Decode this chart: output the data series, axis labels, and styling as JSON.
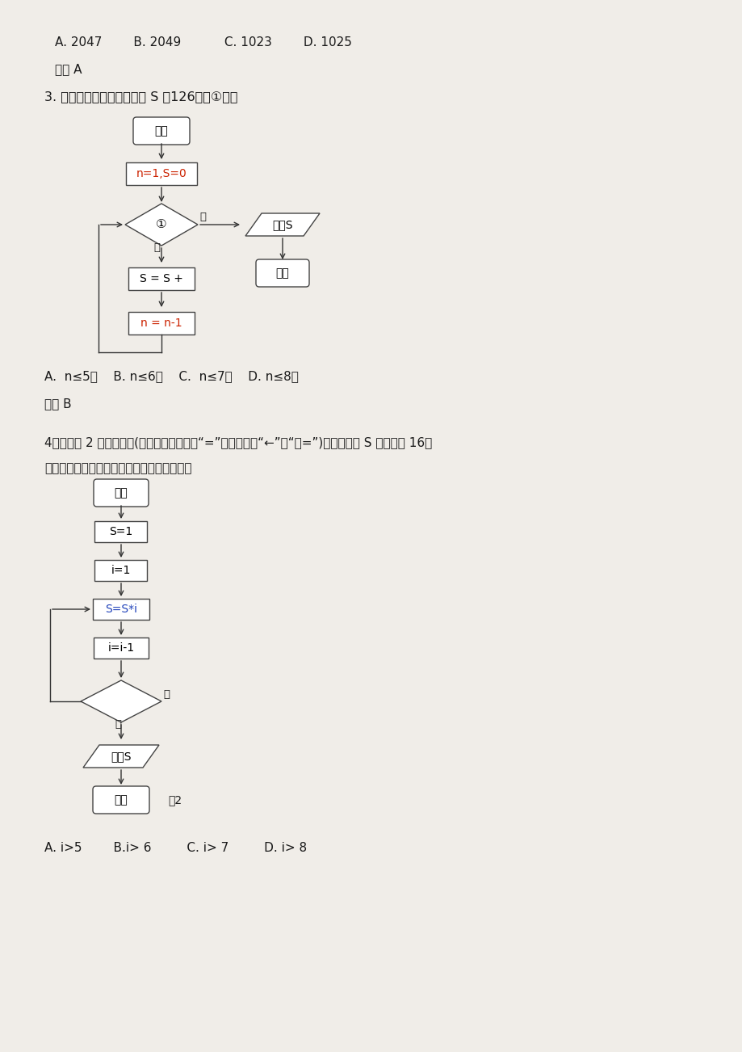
{
  "bg_color": "#f0ede8",
  "text_color": "#1a1a1a",
  "line1": "A. 2047        B. 2049           C. 1023        D. 1025",
  "line2": "答案 A",
  "q3_text": "3. 若右面的程序框图输出的 S 是126，则①应为",
  "q3_options": "A.  n≤5？    B. n≤6？    C.  n≤7？    D. n≤8？",
  "q3_answer": "答案 B",
  "q4_text1": "4、阅读图 2 的程序框图(框图中的赋値符号“=”也可以写成“←”或“：=”)，若输出的 S 的値等于 16，",
  "q4_text2": "那么在程序框图中的判断框内应填写的条件是",
  "q4_options": "A. i>5        B.i> 6         C. i> 7         D. i> 8",
  "box_color": "#ffffff",
  "box_border": "#555555",
  "arrow_color": "#333333",
  "red_text": "#cc2200",
  "blue_text": "#2244bb",
  "dark_text": "#1a1a1a",
  "fc1_kaishi": "开始",
  "fc1_init": "n=1,S=0",
  "fc1_cond": "①",
  "fc1_no": "否",
  "fc1_yes": "是",
  "fc1_sss": "S = S +",
  "fc1_nn": "n = n-1",
  "fc1_output": "输出S",
  "fc1_end": "结束",
  "fc2_kaishi": "开始",
  "fc2_s1": "S=1",
  "fc2_i1": "i=1",
  "fc2_ssi": "S=S*i",
  "fc2_ii": "i=i-1",
  "fc2_no": "否",
  "fc2_yes": "是",
  "fc2_output": "输出S",
  "fc2_end": "结束",
  "fig2_label": "图2"
}
